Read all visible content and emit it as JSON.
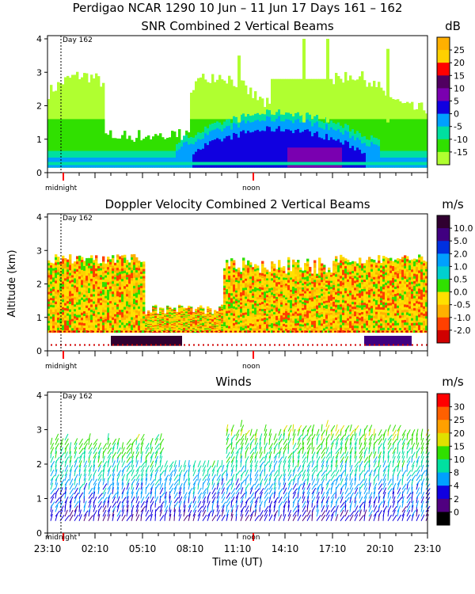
{
  "header": {
    "title": "Perdigao NCAR 1290  10 Jun – 11 Jun 17 Days 161 – 162"
  },
  "chart_data": [
    {
      "type": "heatmap",
      "title": "SNR Combined 2 Vertical Beams",
      "ylabel": "",
      "ylim": [
        0,
        4
      ],
      "yticks": [
        "0",
        "1",
        "2",
        "3",
        "4"
      ],
      "day_label": "Day 162",
      "midnight_label": "midnight",
      "noon_label": "noon",
      "colorbar": {
        "unit": "dB",
        "labels": [
          "25",
          "20",
          "15",
          "10",
          "5",
          "0",
          "-5",
          "-10",
          "-15"
        ],
        "colors": [
          "#ffb000",
          "#ffd000",
          "#ff0000",
          "#500060",
          "#7a00b0",
          "#1000e0",
          "#00a0ff",
          "#00e0a0",
          "#30e000",
          "#b0ff30"
        ]
      }
    },
    {
      "type": "heatmap",
      "title": "Doppler Velocity Combined 2 Vertical Beams",
      "ylabel": "Altitude (km)",
      "ylim": [
        0,
        4
      ],
      "yticks": [
        "0",
        "1",
        "2",
        "3",
        "4"
      ],
      "day_label": "Day 162",
      "midnight_label": "midnight",
      "noon_label": "noon",
      "colorbar": {
        "unit": "m/s",
        "labels": [
          "10.0",
          "5.0",
          "2.0",
          "1.0",
          "0.5",
          "0.0",
          "-0.5",
          "-1.0",
          "-2.0"
        ],
        "colors": [
          "#300030",
          "#400080",
          "#0030e0",
          "#00a0ff",
          "#00d0d0",
          "#30e000",
          "#ffe000",
          "#ffb000",
          "#ff4000",
          "#d00000"
        ]
      }
    },
    {
      "type": "scatter",
      "title": "Winds",
      "ylabel": "",
      "xlabel": "Time (UT)",
      "ylim": [
        0,
        4
      ],
      "yticks": [
        "0",
        "1",
        "2",
        "3",
        "4"
      ],
      "xticks": [
        "23:10",
        "02:10",
        "05:10",
        "08:10",
        "11:10",
        "14:10",
        "17:10",
        "20:10",
        "23:10"
      ],
      "day_label": "Day 162",
      "midnight_label": "midnight",
      "noon_label": "noon",
      "colorbar": {
        "unit": "m/s",
        "labels": [
          "30",
          "25",
          "20",
          "15",
          "10",
          "8",
          "4",
          "2",
          "0"
        ],
        "colors": [
          "#ff0000",
          "#ff6000",
          "#ffa000",
          "#e0e000",
          "#30e000",
          "#00e0a0",
          "#00a0ff",
          "#1000e0",
          "#500080",
          "#000000"
        ]
      }
    }
  ]
}
